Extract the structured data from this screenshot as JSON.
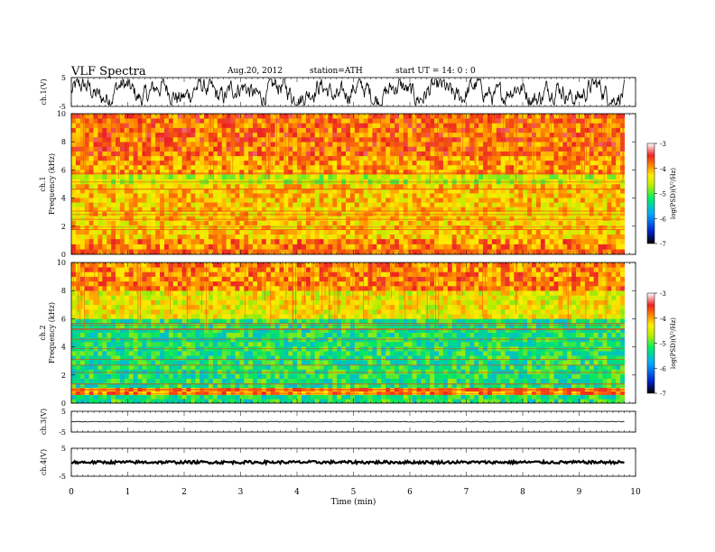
{
  "header": {
    "title": "VLF  Spectra",
    "date": "Aug.20, 2012",
    "station": "station=ATH",
    "start": "start  UT  =   14: 0  : 0"
  },
  "colors": {
    "spectrogram_scale": [
      "#000000",
      "#0022cc",
      "#00aaff",
      "#00ee66",
      "#bbee00",
      "#ffee00",
      "#ff8800",
      "#ee2222",
      "#ffffff"
    ]
  },
  "chart_data": [
    {
      "type": "line",
      "panel": "ch1-waveform",
      "ylabel": "ch.1(V)",
      "yticks": [
        "5",
        "-5"
      ],
      "ylim": [
        -5,
        5
      ],
      "xlim": [
        0,
        10
      ],
      "description_values": {
        "amplitude_range": [
          -4.5,
          4.5
        ],
        "signal_end_min": 9.8
      }
    },
    {
      "type": "heatmap",
      "panel": "ch1-spectrogram",
      "ylabel_channel": "ch.1",
      "ylabel": "Frequency  (kHz)",
      "yticks": [
        "0",
        "2",
        "4",
        "6",
        "8",
        "10"
      ],
      "ylim": [
        0,
        10
      ],
      "xlim": [
        0,
        10
      ],
      "colorbar": {
        "label": "log(PSD)(V²/Hz)",
        "ticks": [
          "-3",
          "-4",
          "-5",
          "-6",
          "-7"
        ],
        "range": [
          -7,
          -3
        ]
      },
      "bands": [
        {
          "f_from": 0,
          "f_to": 1.1,
          "level": -3.9
        },
        {
          "f_from": 1.1,
          "f_to": 5.0,
          "level": -4.2
        },
        {
          "f_from": 5.0,
          "f_to": 5.7,
          "level": -4.6
        },
        {
          "f_from": 5.7,
          "f_to": 7.0,
          "level": -4.0
        },
        {
          "f_from": 7.0,
          "f_to": 10.0,
          "level": -3.8
        }
      ]
    },
    {
      "type": "heatmap",
      "panel": "ch2-spectrogram",
      "ylabel_channel": "ch.2",
      "ylabel": "Frequency  (kHz)",
      "yticks": [
        "0",
        "2",
        "4",
        "6",
        "8",
        "10"
      ],
      "ylim": [
        0,
        10
      ],
      "xlim": [
        0,
        10
      ],
      "colorbar": {
        "label": "log(PSD)(V²/Hz)",
        "ticks": [
          "-3",
          "-4",
          "-5",
          "-6",
          "-7"
        ],
        "range": [
          -7,
          -3
        ]
      },
      "bands": [
        {
          "f_from": 0,
          "f_to": 0.6,
          "level": -5.2
        },
        {
          "f_from": 0.6,
          "f_to": 1.1,
          "level": -3.9
        },
        {
          "f_from": 1.1,
          "f_to": 6.0,
          "level": -5.2
        },
        {
          "f_from": 6.0,
          "f_to": 8.0,
          "level": -4.4
        },
        {
          "f_from": 8.0,
          "f_to": 10.0,
          "level": -3.9
        }
      ]
    },
    {
      "type": "line",
      "panel": "ch3-waveform",
      "ylabel": "ch.3(V)",
      "yticks": [
        "5",
        "-5"
      ],
      "ylim": [
        -5,
        5
      ],
      "xlim": [
        0,
        10
      ],
      "description_values": {
        "amplitude_range": [
          -0.2,
          0.2
        ],
        "signal_end_min": 9.8
      }
    },
    {
      "type": "line",
      "panel": "ch4-waveform",
      "ylabel": "ch.4(V)",
      "yticks": [
        "5",
        "-5"
      ],
      "ylim": [
        -5,
        5
      ],
      "xlim": [
        0,
        10
      ],
      "description_values": {
        "amplitude_range": [
          -0.5,
          0.5
        ],
        "signal_end_min": 9.8
      }
    }
  ],
  "x_axis": {
    "label": "Time  (min)",
    "ticks": [
      "0",
      "1",
      "2",
      "3",
      "4",
      "5",
      "6",
      "7",
      "8",
      "9",
      "10"
    ],
    "range": [
      0,
      10
    ]
  }
}
